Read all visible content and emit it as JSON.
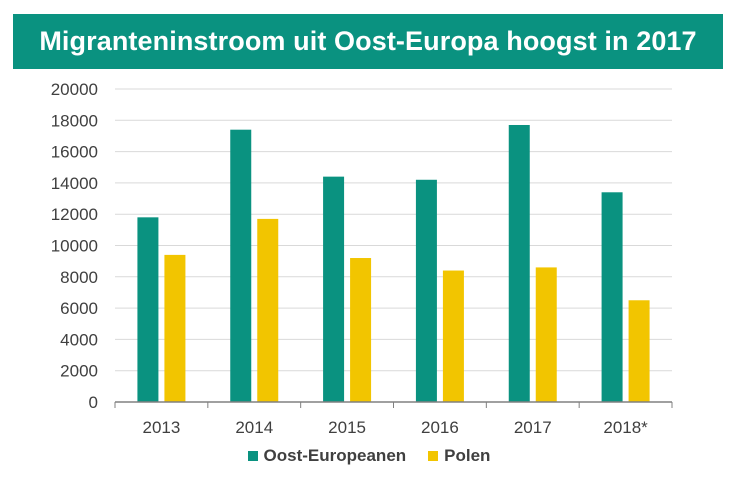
{
  "chart_data": {
    "type": "bar",
    "title": "Migranteninstroom uit Oost-Europa hoogst in 2017",
    "categories": [
      "2013",
      "2014",
      "2015",
      "2016",
      "2017",
      "2018*"
    ],
    "series": [
      {
        "name": "Oost-Europeanen",
        "color": "#0a9280",
        "values": [
          11800,
          17400,
          14400,
          14200,
          17700,
          13400
        ]
      },
      {
        "name": "Polen",
        "color": "#f2c500",
        "values": [
          9400,
          11700,
          9200,
          8400,
          8600,
          6500
        ]
      }
    ],
    "ylim": [
      0,
      20000
    ],
    "yticks": [
      "0",
      "2000",
      "4000",
      "6000",
      "8000",
      "10000",
      "12000",
      "14000",
      "16000",
      "18000",
      "20000"
    ],
    "grid": true,
    "legend_position": "bottom"
  }
}
